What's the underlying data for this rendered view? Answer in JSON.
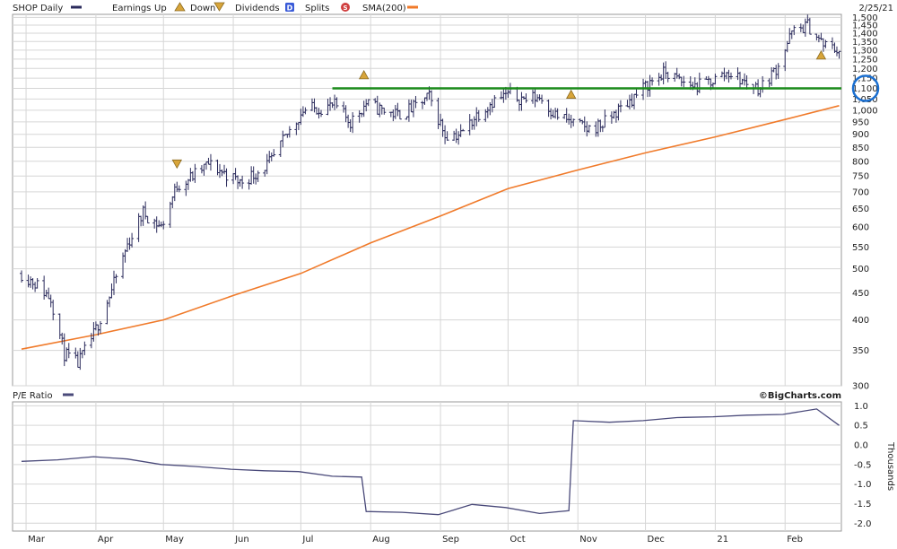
{
  "header": {
    "ticker_label": "SHOP Daily",
    "earnings_label": "Earnings",
    "up_label": "Up",
    "down_label": "Down",
    "dividends_label": "Dividends",
    "splits_label": "Splits",
    "sma_label": "SMA(200)",
    "date": "2/25/21",
    "dividend_glyph": "D",
    "split_glyph": "S"
  },
  "lower_panel": {
    "title": "P/E Ratio",
    "credit": "©BigCharts.com",
    "axis_label": "Thousands"
  },
  "colors": {
    "price_bars": "#2b2b5c",
    "sma": "#f07a2a",
    "support_line": "#1a8a1a",
    "highlight_circle": "#1a6fd1",
    "earnings_marker": "#d8a53a",
    "dividend_marker": "#3a5bd8",
    "split_marker": "#d04040",
    "pe_line": "#4a4a7a",
    "grid": "#d6d6d6"
  },
  "chart_data": [
    {
      "type": "ohlc",
      "title": "SHOP Daily",
      "y_scale": "log",
      "ylim": [
        300,
        1520
      ],
      "y_ticks": [
        "1,500",
        "1,450",
        "1,400",
        "1,350",
        "1,300",
        "1,250",
        "1,200",
        "1,150",
        "1,100",
        "1,050",
        "1,000",
        "950",
        "900",
        "850",
        "800",
        "750",
        "700",
        "650",
        "600",
        "550",
        "500",
        "450",
        "400",
        "350",
        "300"
      ],
      "x_ticks": [
        "Mar",
        "Apr",
        "May",
        "Jun",
        "Jul",
        "Aug",
        "Sep",
        "Oct",
        "Nov",
        "Dec",
        "21",
        "Feb"
      ],
      "series": [
        {
          "name": "SHOP Daily",
          "x": [
            "2020-02-28",
            "2020-03-05",
            "2020-03-12",
            "2020-03-18",
            "2020-03-24",
            "2020-03-31",
            "2020-04-08",
            "2020-04-15",
            "2020-04-22",
            "2020-04-30",
            "2020-05-07",
            "2020-05-14",
            "2020-05-21",
            "2020-05-28",
            "2020-06-04",
            "2020-06-11",
            "2020-06-18",
            "2020-06-25",
            "2020-07-02",
            "2020-07-09",
            "2020-07-16",
            "2020-07-23",
            "2020-07-30",
            "2020-08-06",
            "2020-08-13",
            "2020-08-20",
            "2020-08-27",
            "2020-09-03",
            "2020-09-10",
            "2020-09-17",
            "2020-09-24",
            "2020-10-01",
            "2020-10-08",
            "2020-10-15",
            "2020-10-22",
            "2020-10-29",
            "2020-11-05",
            "2020-11-12",
            "2020-11-19",
            "2020-11-26",
            "2020-12-03",
            "2020-12-10",
            "2020-12-17",
            "2020-12-24",
            "2020-12-31",
            "2021-01-07",
            "2021-01-14",
            "2021-01-21",
            "2021-01-28",
            "2021-02-04",
            "2021-02-11",
            "2021-02-18",
            "2021-02-25"
          ],
          "close": [
            490,
            470,
            440,
            345,
            330,
            375,
            455,
            555,
            640,
            600,
            720,
            750,
            790,
            760,
            730,
            760,
            800,
            900,
            1000,
            1010,
            1020,
            950,
            1030,
            1000,
            980,
            1010,
            1060,
            900,
            900,
            980,
            1040,
            1070,
            1050,
            1060,
            980,
            950,
            920,
            940,
            1000,
            1060,
            1130,
            1180,
            1130,
            1110,
            1140,
            1180,
            1130,
            1100,
            1200,
            1400,
            1450,
            1330,
            1300
          ]
        },
        {
          "name": "SMA(200)",
          "x": [
            "2020-02-28",
            "2020-04-01",
            "2020-05-01",
            "2020-06-01",
            "2020-07-01",
            "2020-08-01",
            "2020-09-01",
            "2020-10-01",
            "2020-11-01",
            "2020-12-01",
            "2021-01-01",
            "2021-02-01",
            "2021-02-25"
          ],
          "values": [
            352,
            375,
            400,
            445,
            490,
            560,
            630,
            710,
            770,
            830,
            890,
            960,
            1020
          ]
        },
        {
          "name": "Support",
          "x": [
            "2020-07-15",
            "2021-02-26"
          ],
          "values": [
            1100,
            1100
          ]
        }
      ],
      "events": [
        {
          "kind": "earnings_down",
          "date": "2020-05-07"
        },
        {
          "kind": "earnings_up",
          "date": "2020-07-29"
        },
        {
          "kind": "earnings_up",
          "date": "2020-10-29"
        },
        {
          "kind": "earnings_up",
          "date": "2021-02-17"
        }
      ]
    },
    {
      "type": "line",
      "title": "P/E Ratio",
      "ylabel": "Thousands",
      "ylim": [
        -2.2,
        1.1
      ],
      "y_ticks": [
        "1.0",
        "0.5",
        "0.0",
        "-0.5",
        "-1.0",
        "-1.5",
        "-2.0"
      ],
      "x_ticks": [
        "Mar",
        "Apr",
        "May",
        "Jun",
        "Jul",
        "Aug",
        "Sep",
        "Oct",
        "Nov",
        "Dec",
        "21",
        "Feb"
      ],
      "series": [
        {
          "name": "P/E Ratio",
          "x": [
            "2020-02-28",
            "2020-03-15",
            "2020-03-31",
            "2020-04-15",
            "2020-04-30",
            "2020-05-15",
            "2020-05-31",
            "2020-06-15",
            "2020-06-30",
            "2020-07-15",
            "2020-07-28",
            "2020-07-30",
            "2020-08-15",
            "2020-08-31",
            "2020-09-15",
            "2020-09-30",
            "2020-10-15",
            "2020-10-28",
            "2020-10-30",
            "2020-11-15",
            "2020-11-30",
            "2020-12-15",
            "2020-12-31",
            "2021-01-15",
            "2021-01-31",
            "2021-02-15",
            "2021-02-25"
          ],
          "values": [
            -0.42,
            -0.38,
            -0.3,
            -0.36,
            -0.5,
            -0.55,
            -0.62,
            -0.66,
            -0.68,
            -0.8,
            -0.82,
            -1.7,
            -1.72,
            -1.78,
            -1.52,
            -1.6,
            -1.75,
            -1.68,
            0.62,
            0.58,
            0.62,
            0.7,
            0.72,
            0.76,
            0.78,
            0.92,
            0.5
          ]
        }
      ]
    }
  ]
}
